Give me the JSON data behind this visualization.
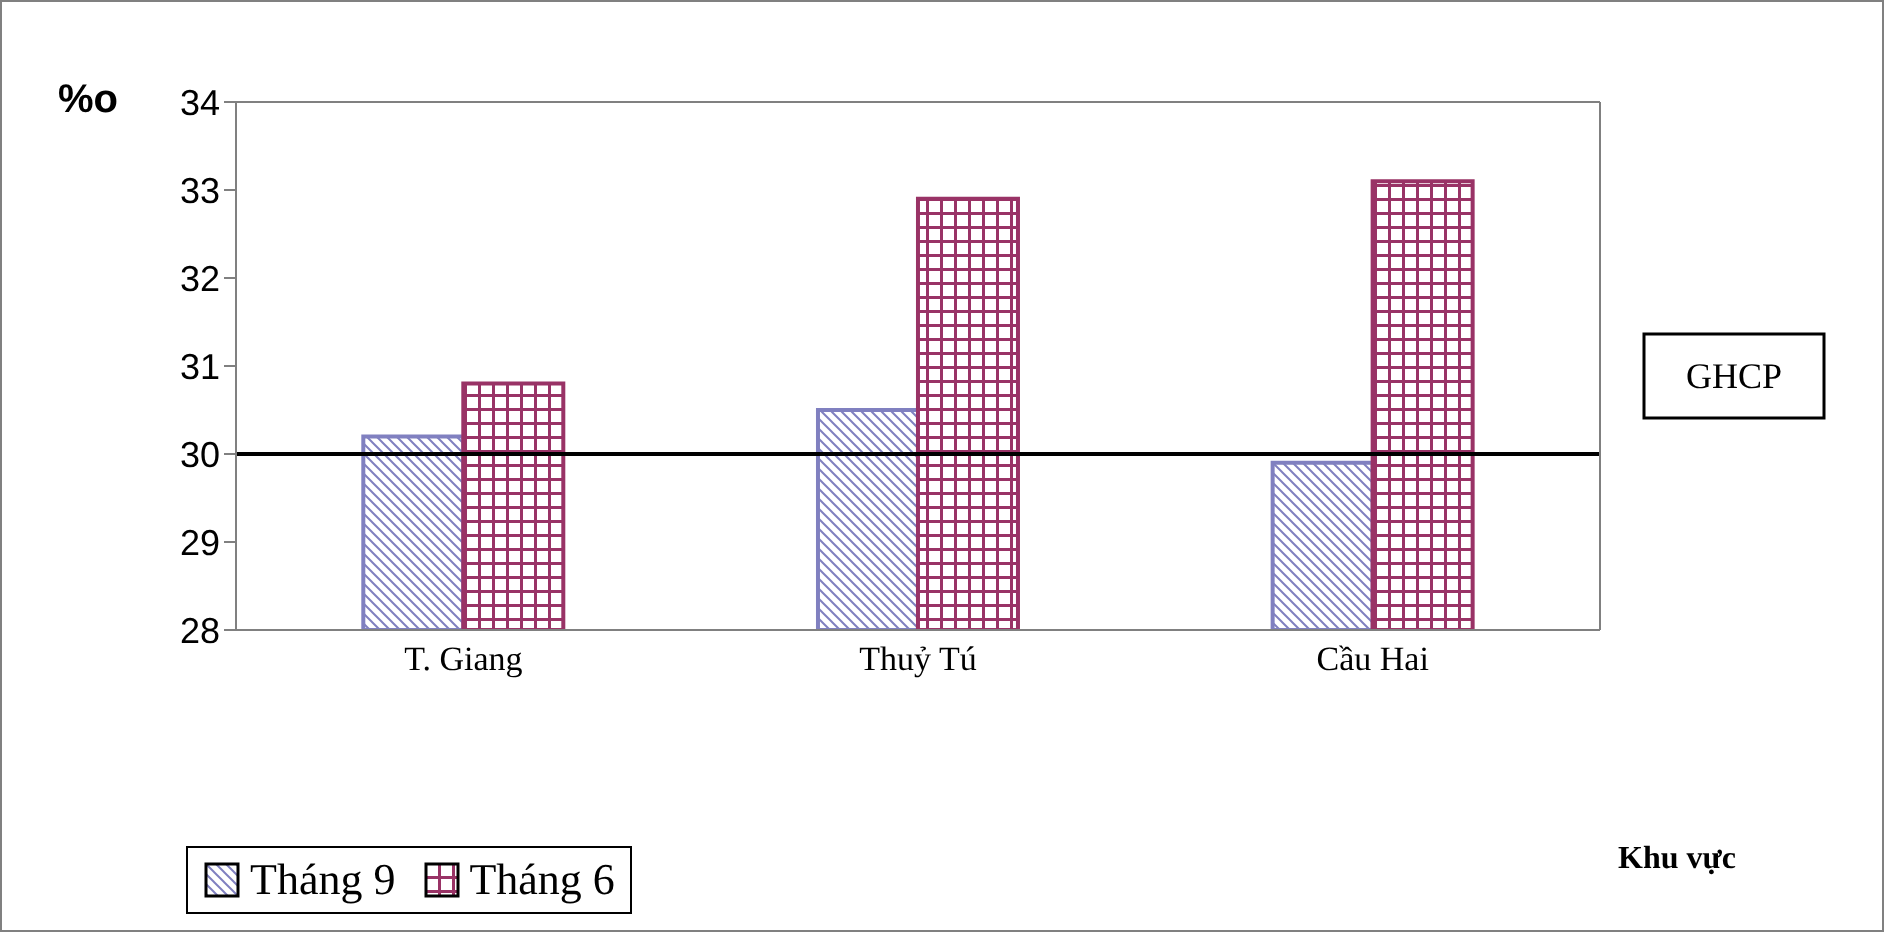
{
  "chart_data": {
    "type": "bar",
    "ylabel": "%o",
    "annotations": [
      "Khu vực"
    ],
    "categories": [
      "T. Giang",
      "Thuỷ Tú",
      "Cầu Hai"
    ],
    "series": [
      {
        "name": "Tháng 9",
        "color": "#8080c0",
        "values": [
          30.2,
          30.5,
          29.9
        ]
      },
      {
        "name": "Tháng 6",
        "color": "#993366",
        "values": [
          30.8,
          32.9,
          33.1
        ]
      }
    ],
    "ylim": [
      28,
      34
    ],
    "yticks": [
      28,
      29,
      30,
      31,
      32,
      33,
      34
    ],
    "ref_lines": [
      {
        "axis": "y",
        "value": 30,
        "label": "GHCP",
        "color": "#000000"
      }
    ],
    "legend": "bottom left",
    "grid": false
  }
}
